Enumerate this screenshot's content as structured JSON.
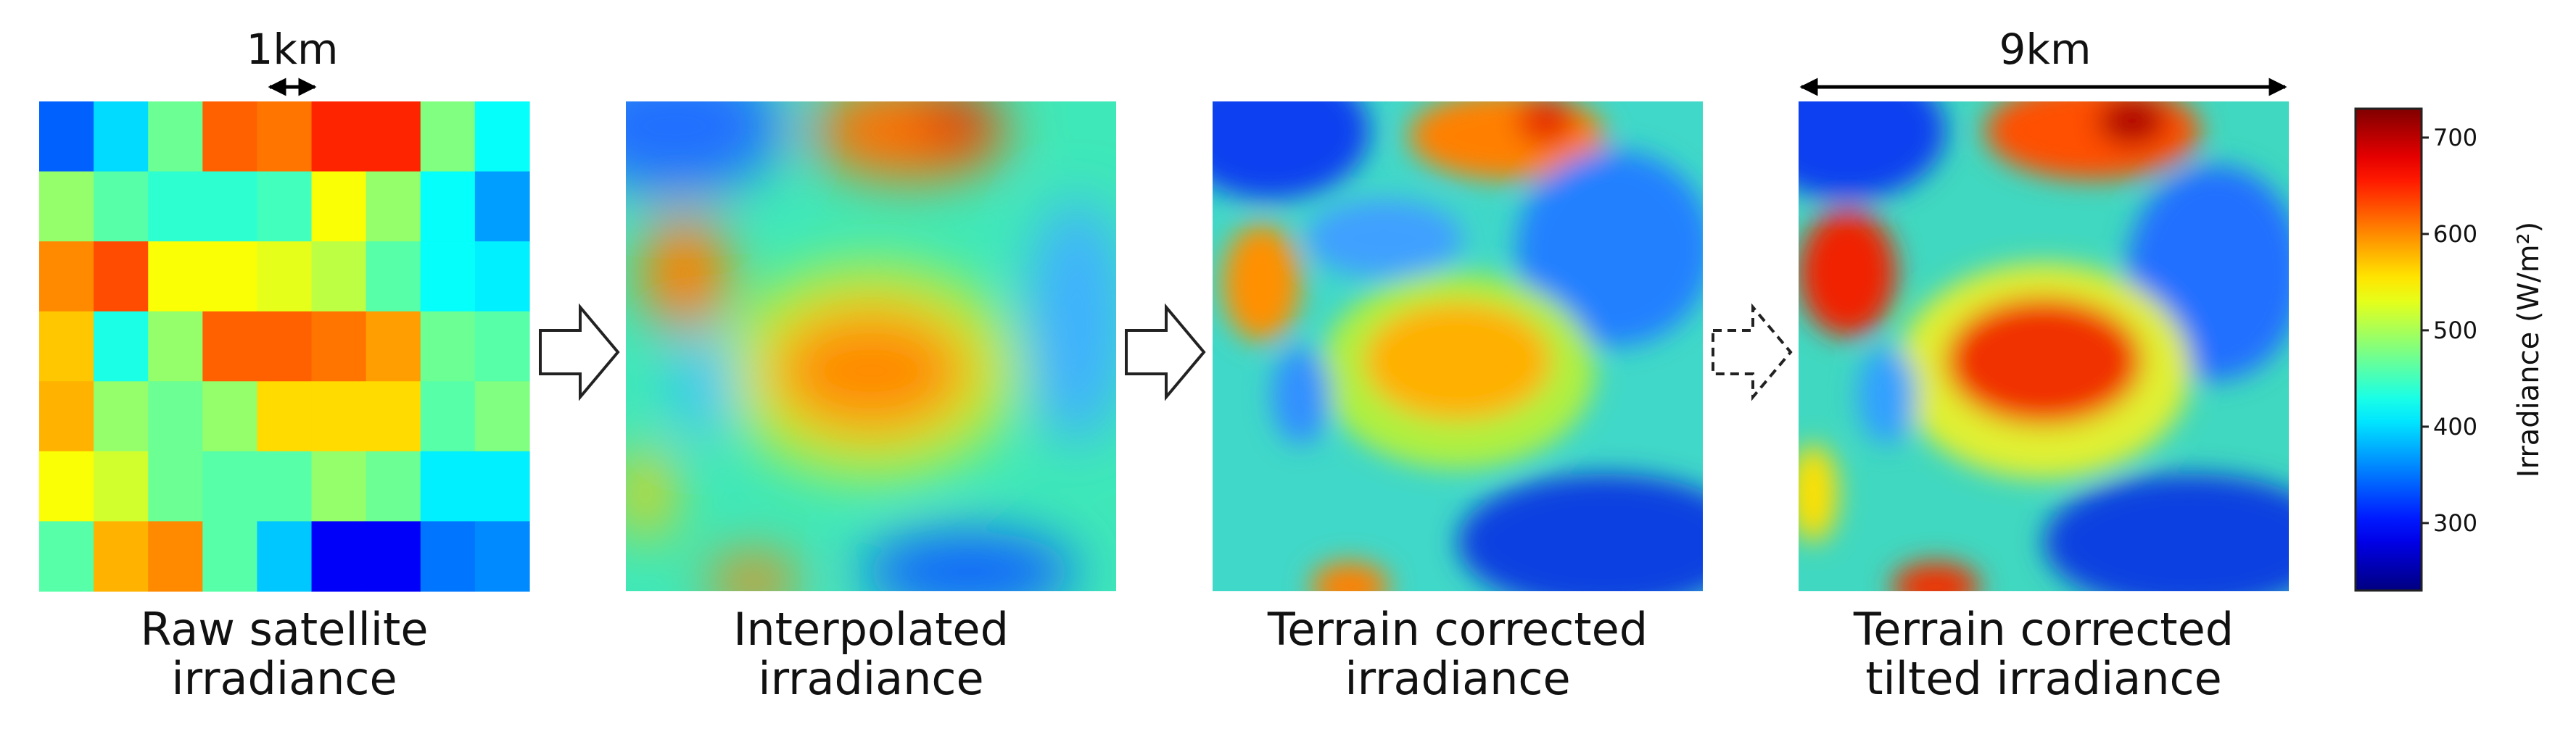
{
  "panels": [
    {
      "label": [
        "Raw satellite",
        "irradiance"
      ]
    },
    {
      "label": [
        "Interpolated",
        "irradiance"
      ]
    },
    {
      "label": [
        "Terrain corrected",
        "irradiance"
      ]
    },
    {
      "label": [
        "Terrain corrected",
        "tilted irradiance"
      ]
    }
  ],
  "scale_labels": {
    "cell": "1km",
    "extent": "9km"
  },
  "raw_grid": [
    [
      340,
      400,
      470,
      620,
      610,
      650,
      650,
      480,
      420
    ],
    [
      490,
      460,
      440,
      440,
      450,
      540,
      490,
      420,
      370
    ],
    [
      600,
      630,
      540,
      540,
      530,
      510,
      460,
      420,
      410
    ],
    [
      570,
      430,
      490,
      620,
      620,
      610,
      590,
      470,
      460
    ],
    [
      580,
      490,
      470,
      490,
      560,
      560,
      560,
      460,
      480
    ],
    [
      540,
      520,
      470,
      460,
      460,
      490,
      470,
      410,
      410
    ],
    [
      460,
      580,
      600,
      460,
      390,
      290,
      290,
      350,
      360
    ]
  ],
  "colorbar": {
    "label": "Irradiance (W/m²)",
    "range": [
      230,
      730
    ],
    "ticks": [
      300,
      400,
      500,
      600,
      700
    ]
  }
}
